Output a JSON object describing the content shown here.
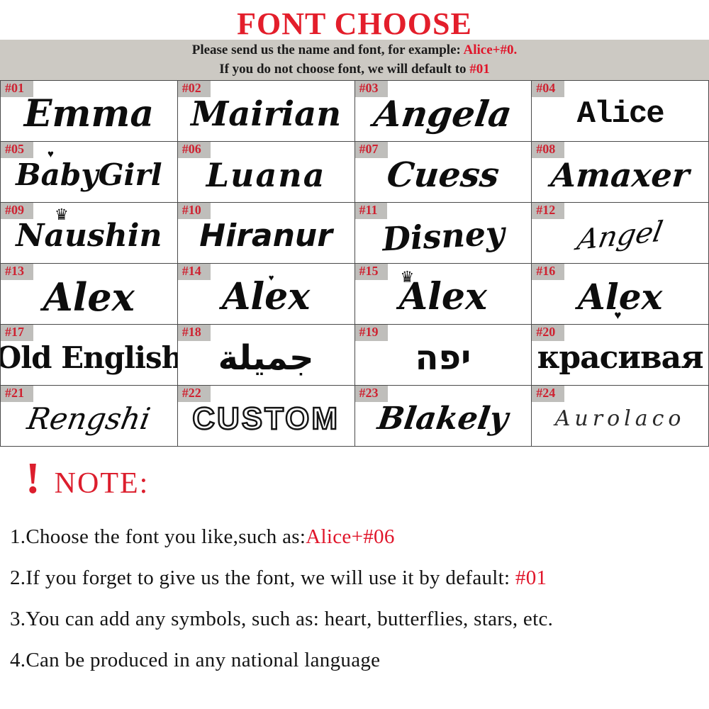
{
  "title": "FONT CHOOSE",
  "banner": {
    "line1": {
      "text": "Please send us the name and font, for example: ",
      "highlight": "Alice+#0."
    },
    "line2": {
      "text": "If you do not choose  font, we will default to ",
      "highlight": "#01"
    }
  },
  "grid": {
    "samples": [
      {
        "label": "#01",
        "text": "Emma"
      },
      {
        "label": "#02",
        "text": "Mairian"
      },
      {
        "label": "#03",
        "text": "Angela"
      },
      {
        "label": "#04",
        "text": "Alice"
      },
      {
        "label": "#05",
        "text": "BabyGirl",
        "decoration": "♥"
      },
      {
        "label": "#06",
        "text": "Luana"
      },
      {
        "label": "#07",
        "text": "Cuess"
      },
      {
        "label": "#08",
        "text": "Amaxer"
      },
      {
        "label": "#09",
        "text": "Naushin",
        "decoration": "♛"
      },
      {
        "label": "#10",
        "text": "Hiranur"
      },
      {
        "label": "#11",
        "text": "Disney"
      },
      {
        "label": "#12",
        "text": "Angel"
      },
      {
        "label": "#13",
        "text": "Alex"
      },
      {
        "label": "#14",
        "text": "Alex",
        "decoration": "♥"
      },
      {
        "label": "#15",
        "text": "Alex",
        "decoration": "♛"
      },
      {
        "label": "#16",
        "text": "Alex",
        "decoration": "♥"
      },
      {
        "label": "#17",
        "text": "Old English"
      },
      {
        "label": "#18",
        "text": "جميلة"
      },
      {
        "label": "#19",
        "text": "יפה"
      },
      {
        "label": "#20",
        "text": "красивая"
      },
      {
        "label": "#21",
        "text": "Rengshi"
      },
      {
        "label": "#22",
        "text": "CUSTOM"
      },
      {
        "label": "#23",
        "text": "Blakely"
      },
      {
        "label": "#24",
        "text": "Aurolaco"
      }
    ]
  },
  "note": {
    "exclamation": "!",
    "heading": "NOTE:",
    "items": [
      {
        "text": "1.Choose the font you like,such as:",
        "highlight": "Alice+#06"
      },
      {
        "text": "2.If you forget to give us the font, we will use it by default: ",
        "highlight": "#01"
      },
      {
        "text": "3.You can add any symbols, such as: heart, butterflies, stars, etc.",
        "highlight": ""
      },
      {
        "text": "4.Can be produced in any national language",
        "highlight": ""
      }
    ]
  },
  "colors": {
    "accent_red": "#e0152a",
    "banner_bg": "#ccc9c3",
    "tag_bg": "#bfbebb",
    "text_black": "#0d0d0d"
  }
}
